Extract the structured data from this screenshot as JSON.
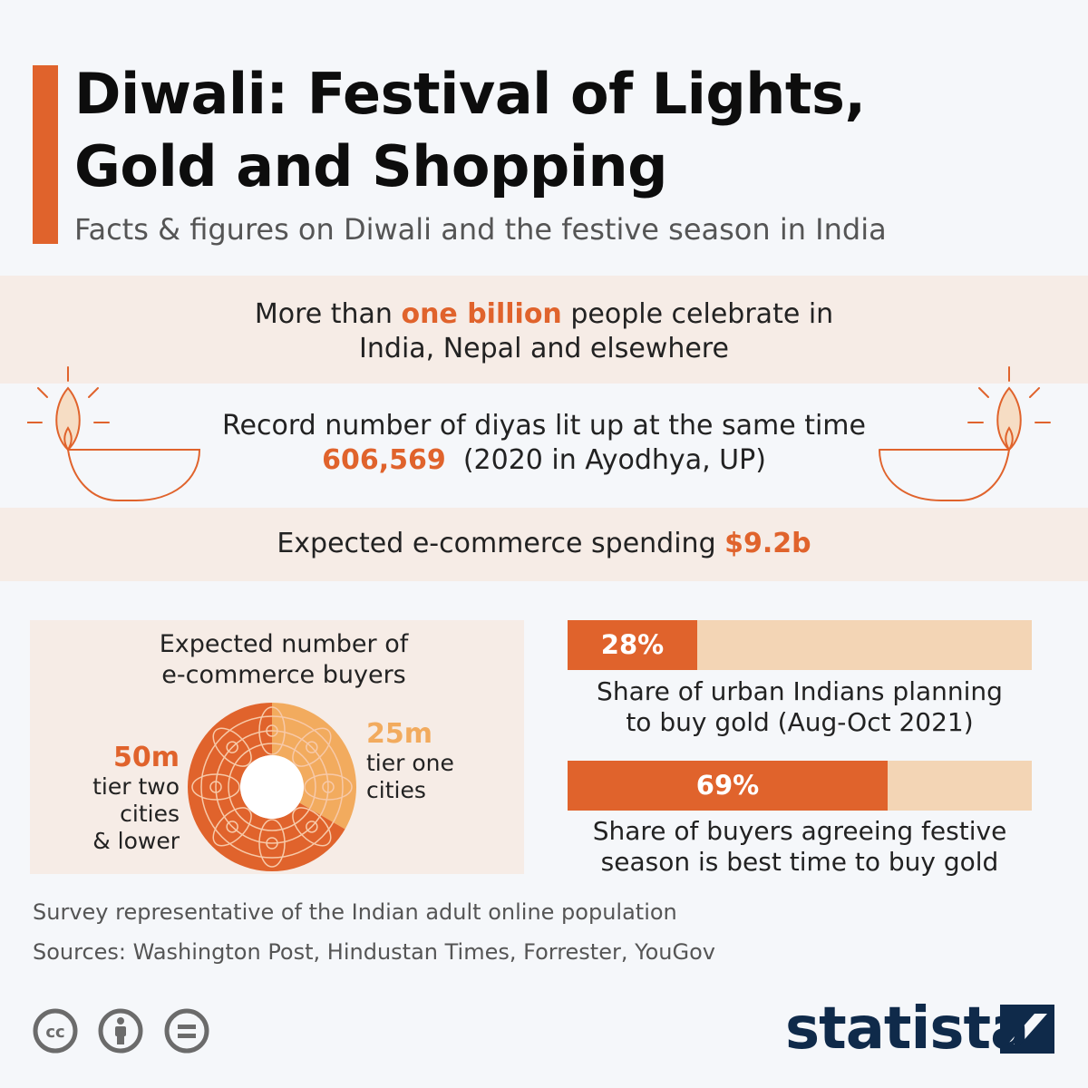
{
  "header": {
    "title_line1": "Diwali: Festival of Lights,",
    "title_line2": "Gold and Shopping",
    "subtitle": "Facts & figures on Diwali and the festive season in India"
  },
  "facts": {
    "fact1_pre": "More than ",
    "fact1_highlight": "one billion",
    "fact1_post": " people celebrate in",
    "fact1_line2": "India, Nepal and elsewhere",
    "fact2_line1": "Record number of diyas lit up at the same time",
    "fact2_highlight": "606,569",
    "fact2_post": "(2020 in Ayodhya, UP)",
    "fact3_pre": "Expected e-commerce spending ",
    "fact3_highlight": "$9.2b"
  },
  "chart_data": [
    {
      "type": "pie",
      "title": "Expected number of e-commerce buyers",
      "title_line1": "Expected number of",
      "title_line2": "e-commerce buyers",
      "slices": [
        {
          "value_label": "50m",
          "value": 50,
          "label_lines": [
            "tier two",
            "cities",
            "& lower"
          ],
          "color": "#e0632c"
        },
        {
          "value_label": "25m",
          "value": 25,
          "label_lines": [
            "tier one",
            "cities"
          ],
          "color": "#f2ab5e"
        }
      ]
    },
    {
      "type": "bar",
      "orientation": "horizontal",
      "xlim": [
        0,
        100
      ],
      "bars": [
        {
          "value": 28,
          "value_label": "28%",
          "desc_line1": "Share of urban Indians planning",
          "desc_line2": "to buy gold (Aug-Oct 2021)"
        },
        {
          "value": 69,
          "value_label": "69%",
          "desc_line1": "Share of buyers agreeing festive",
          "desc_line2": "season is best time to buy gold"
        }
      ],
      "colors": {
        "fill": "#e0632c",
        "track": "#f3d5b5"
      }
    }
  ],
  "footer": {
    "note": "Survey representative of the Indian adult online population",
    "sources": "Sources: Washington Post, Hindustan Times, Forrester, YouGov",
    "license_icons": [
      "cc-icon",
      "attribution-icon",
      "no-derivatives-icon"
    ],
    "brand": "statista"
  },
  "colors": {
    "accent": "#e0632c",
    "band": "#f6ece6",
    "brand": "#0f2a4a"
  }
}
